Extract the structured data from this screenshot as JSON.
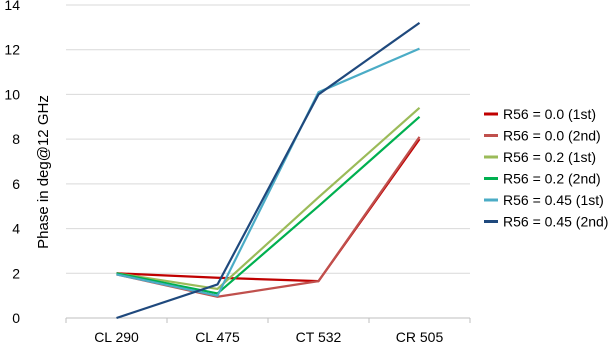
{
  "chart_data": {
    "type": "line",
    "categories": [
      "CL 290",
      "CL 475",
      "CT 532",
      "CR 505"
    ],
    "ylabel": "Phase in deg@12 GHz",
    "ylim": [
      0,
      14
    ],
    "yticks": [
      0,
      2,
      4,
      6,
      8,
      10,
      12,
      14
    ],
    "grid": true,
    "legend_position": "right",
    "series": [
      {
        "name": "R56 = 0.0 (1st)",
        "color": "#c00000",
        "values": [
          2.0,
          1.8,
          1.65,
          8.0
        ]
      },
      {
        "name": "R56 = 0.0 (2nd)",
        "color": "#c0504d",
        "values": [
          1.95,
          0.95,
          1.65,
          8.1
        ]
      },
      {
        "name": "R56 = 0.2 (1st)",
        "color": "#9bbb59",
        "values": [
          2.0,
          1.3,
          5.4,
          9.4
        ]
      },
      {
        "name": "R56 = 0.2 (2nd)",
        "color": "#00b050",
        "values": [
          2.0,
          1.1,
          5.0,
          9.0
        ]
      },
      {
        "name": "R56 = 0.45 (1st)",
        "color": "#4bacc6",
        "values": [
          1.95,
          1.0,
          10.1,
          12.05
        ]
      },
      {
        "name": "R56 = 0.45 (2nd)",
        "color": "#1f497d",
        "values": [
          0.0,
          1.5,
          10.0,
          13.2
        ]
      }
    ]
  }
}
